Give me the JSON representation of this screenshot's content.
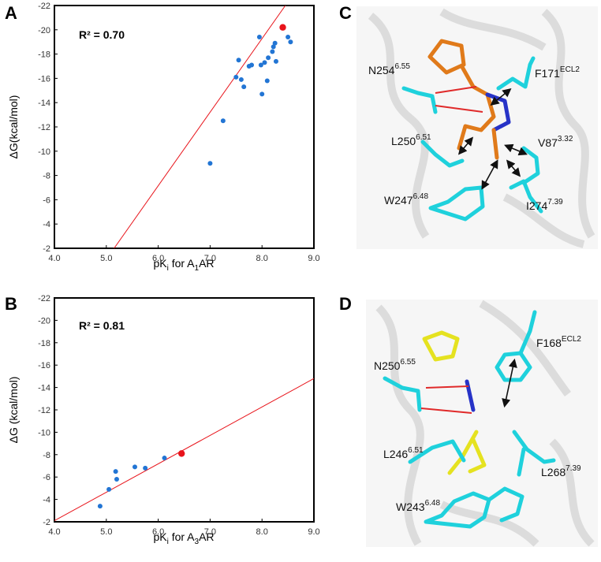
{
  "panels": {
    "A": "A",
    "B": "B",
    "C": "C",
    "D": "D"
  },
  "colors": {
    "point": "#2275d4",
    "highlight": "#e8141b",
    "fit": "#e8141b",
    "cyan": "#1fd1dc",
    "orange": "#e07a1a",
    "yellow": "#e5e220",
    "blue": "#2733c7",
    "red": "#e02a2a"
  },
  "chart_data": [
    {
      "type": "scatter",
      "xlabel": {
        "base": "pK",
        "sub": "i",
        "mid": " for A",
        "sub2": "1",
        "tail": "AR"
      },
      "ylabel": "ΔG(kcal/mol)",
      "annotation": "R² = 0.70",
      "xlim": [
        4.0,
        9.0
      ],
      "ylim": [
        -2,
        -22
      ],
      "xticks": [
        "4.0",
        "5.0",
        "6.0",
        "7.0",
        "8.0",
        "9.0"
      ],
      "yticks": [
        "-2",
        "-4",
        "-6",
        "-8",
        "-10",
        "-12",
        "-14",
        "-16",
        "-18",
        "-20",
        "-22"
      ],
      "points": [
        {
          "x": 7.0,
          "y": -9.0
        },
        {
          "x": 7.25,
          "y": -12.5
        },
        {
          "x": 7.5,
          "y": -16.1
        },
        {
          "x": 7.55,
          "y": -17.5
        },
        {
          "x": 7.6,
          "y": -15.9
        },
        {
          "x": 7.65,
          "y": -15.3
        },
        {
          "x": 7.75,
          "y": -17.0
        },
        {
          "x": 7.8,
          "y": -17.1
        },
        {
          "x": 7.95,
          "y": -19.4
        },
        {
          "x": 7.98,
          "y": -17.1
        },
        {
          "x": 8.0,
          "y": -14.7
        },
        {
          "x": 8.05,
          "y": -17.3
        },
        {
          "x": 8.1,
          "y": -15.8
        },
        {
          "x": 8.12,
          "y": -17.7
        },
        {
          "x": 8.2,
          "y": -18.2
        },
        {
          "x": 8.22,
          "y": -18.6
        },
        {
          "x": 8.25,
          "y": -18.9
        },
        {
          "x": 8.27,
          "y": -17.4
        },
        {
          "x": 8.5,
          "y": -19.4
        },
        {
          "x": 8.55,
          "y": -19.0
        }
      ],
      "highlight": {
        "x": 8.4,
        "y": -20.2
      },
      "fit_line": [
        {
          "x": 5.15,
          "y": -2
        },
        {
          "x": 8.45,
          "y": -22
        }
      ]
    },
    {
      "type": "scatter",
      "xlabel": {
        "base": "pK",
        "sub": "i",
        "mid": " for A",
        "sub2": "3",
        "tail": "AR"
      },
      "ylabel": "ΔG (kcal/mol)",
      "annotation": "R² = 0.81",
      "xlim": [
        4.0,
        9.0
      ],
      "ylim": [
        -2,
        -22
      ],
      "xticks": [
        "4.0",
        "5.0",
        "6.0",
        "7.0",
        "8.0",
        "9.0"
      ],
      "yticks": [
        "-2",
        "-4",
        "-6",
        "-8",
        "-10",
        "-12",
        "-14",
        "-16",
        "-18",
        "-20",
        "-22"
      ],
      "points": [
        {
          "x": 4.88,
          "y": -3.4
        },
        {
          "x": 5.05,
          "y": -4.9
        },
        {
          "x": 5.18,
          "y": -6.5
        },
        {
          "x": 5.2,
          "y": -5.8
        },
        {
          "x": 5.55,
          "y": -6.9
        },
        {
          "x": 5.75,
          "y": -6.8
        },
        {
          "x": 6.12,
          "y": -7.7
        }
      ],
      "highlight": {
        "x": 6.45,
        "y": -8.1
      },
      "fit_line": [
        {
          "x": 4.0,
          "y": -2.1
        },
        {
          "x": 9.0,
          "y": -14.8
        }
      ]
    }
  ],
  "structure_c": {
    "labels": [
      {
        "name": "N254",
        "sup": "6.55"
      },
      {
        "name": "F171",
        "sup": "ECL2"
      },
      {
        "name": "L250",
        "sup": "6.51"
      },
      {
        "name": "V87",
        "sup": "3.32"
      },
      {
        "name": "W247",
        "sup": "6.48"
      },
      {
        "name": "I274",
        "sup": "7.39"
      }
    ]
  },
  "structure_d": {
    "labels": [
      {
        "name": "F168",
        "sup": "ECL2"
      },
      {
        "name": "N250",
        "sup": "6.55"
      },
      {
        "name": "L246",
        "sup": "6.51"
      },
      {
        "name": "L268",
        "sup": "7.39"
      },
      {
        "name": "W243",
        "sup": "6.48"
      }
    ]
  }
}
